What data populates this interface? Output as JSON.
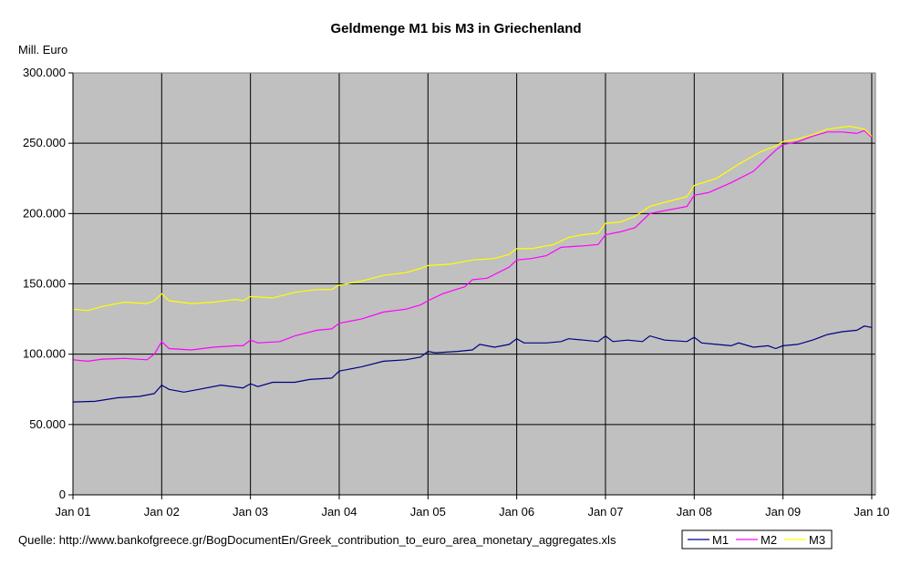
{
  "title": "Geldmenge M1 bis M3 in Griechenland",
  "unit_label": "Mill. Euro",
  "source_text": "Quelle: http://www.bankofgreece.gr/BogDocumentEn/Greek_contribution_to_euro_area_monetary_aggregates.xls",
  "colors": {
    "plot_bg": "#C0C0C0",
    "grid": "#000000",
    "M1": "#000080",
    "M2": "#FF00FF",
    "M3": "#FFFF00"
  },
  "chart_data": {
    "type": "line",
    "title": "Geldmenge M1 bis M3 in Griechenland",
    "ylabel": "Mill. Euro",
    "xlabel": "",
    "ylim": [
      0,
      300000
    ],
    "xlim": [
      0,
      108.5
    ],
    "y_ticks": [
      0,
      50000,
      100000,
      150000,
      200000,
      250000,
      300000
    ],
    "y_tick_labels": [
      "0",
      "50.000",
      "100.000",
      "150.000",
      "200.000",
      "250.000",
      "300.000"
    ],
    "x_tick_labels": [
      "Jan 01",
      "Jan 02",
      "Jan 03",
      "Jan 04",
      "Jan 05",
      "Jan 06",
      "Jan 07",
      "Jan 08",
      "Jan 09",
      "Jan 10"
    ],
    "x_start": "2001-01",
    "x_end": "2010-01",
    "grid": true,
    "legend_position": "bottom-right",
    "series": [
      {
        "name": "M1",
        "points": [
          [
            "2001-01",
            66000
          ],
          [
            "2001-04",
            66500
          ],
          [
            "2001-07",
            69000
          ],
          [
            "2001-10",
            70000
          ],
          [
            "2001-12",
            72000
          ],
          [
            "2002-01",
            78000
          ],
          [
            "2002-02",
            75000
          ],
          [
            "2002-04",
            73000
          ],
          [
            "2002-06",
            75000
          ],
          [
            "2002-09",
            78000
          ],
          [
            "2002-12",
            76000
          ],
          [
            "2003-01",
            79000
          ],
          [
            "2003-02",
            77000
          ],
          [
            "2003-04",
            80000
          ],
          [
            "2003-07",
            80000
          ],
          [
            "2003-09",
            82000
          ],
          [
            "2003-12",
            83000
          ],
          [
            "2004-01",
            88000
          ],
          [
            "2004-04",
            91000
          ],
          [
            "2004-07",
            95000
          ],
          [
            "2004-10",
            96000
          ],
          [
            "2004-12",
            98000
          ],
          [
            "2005-01",
            102000
          ],
          [
            "2005-02",
            101000
          ],
          [
            "2005-05",
            102000
          ],
          [
            "2005-07",
            103000
          ],
          [
            "2005-08",
            107000
          ],
          [
            "2005-10",
            105000
          ],
          [
            "2005-12",
            107000
          ],
          [
            "2006-01",
            111000
          ],
          [
            "2006-02",
            108000
          ],
          [
            "2006-05",
            108000
          ],
          [
            "2006-07",
            109000
          ],
          [
            "2006-08",
            111000
          ],
          [
            "2006-10",
            110000
          ],
          [
            "2006-12",
            109000
          ],
          [
            "2007-01",
            113000
          ],
          [
            "2007-02",
            109000
          ],
          [
            "2007-04",
            110000
          ],
          [
            "2007-06",
            109000
          ],
          [
            "2007-07",
            113000
          ],
          [
            "2007-09",
            110000
          ],
          [
            "2007-12",
            109000
          ],
          [
            "2008-01",
            112000
          ],
          [
            "2008-02",
            108000
          ],
          [
            "2008-04",
            107000
          ],
          [
            "2008-06",
            106000
          ],
          [
            "2008-07",
            108000
          ],
          [
            "2008-09",
            105000
          ],
          [
            "2008-11",
            106000
          ],
          [
            "2008-12",
            104000
          ],
          [
            "2009-01",
            106000
          ],
          [
            "2009-03",
            107000
          ],
          [
            "2009-05",
            110000
          ],
          [
            "2009-07",
            114000
          ],
          [
            "2009-09",
            116000
          ],
          [
            "2009-11",
            117000
          ],
          [
            "2009-12",
            120000
          ],
          [
            "2010-01",
            119000
          ]
        ]
      },
      {
        "name": "M2",
        "points": [
          [
            "2001-01",
            96000
          ],
          [
            "2001-03",
            95000
          ],
          [
            "2001-05",
            96500
          ],
          [
            "2001-08",
            97000
          ],
          [
            "2001-11",
            96000
          ],
          [
            "2001-12",
            100000
          ],
          [
            "2002-01",
            109000
          ],
          [
            "2002-02",
            104000
          ],
          [
            "2002-05",
            103000
          ],
          [
            "2002-08",
            105000
          ],
          [
            "2002-11",
            106000
          ],
          [
            "2002-12",
            106000
          ],
          [
            "2003-01",
            110000
          ],
          [
            "2003-02",
            108000
          ],
          [
            "2003-05",
            109000
          ],
          [
            "2003-07",
            113000
          ],
          [
            "2003-10",
            117000
          ],
          [
            "2003-12",
            118000
          ],
          [
            "2004-01",
            122000
          ],
          [
            "2004-04",
            125000
          ],
          [
            "2004-07",
            130000
          ],
          [
            "2004-10",
            132000
          ],
          [
            "2004-12",
            135000
          ],
          [
            "2005-01",
            138000
          ],
          [
            "2005-03",
            143000
          ],
          [
            "2005-06",
            148000
          ],
          [
            "2005-07",
            153000
          ],
          [
            "2005-09",
            154000
          ],
          [
            "2005-12",
            162000
          ],
          [
            "2006-01",
            167000
          ],
          [
            "2006-03",
            168000
          ],
          [
            "2006-05",
            170000
          ],
          [
            "2006-07",
            176000
          ],
          [
            "2006-10",
            177000
          ],
          [
            "2006-12",
            178000
          ],
          [
            "2007-01",
            185000
          ],
          [
            "2007-03",
            187000
          ],
          [
            "2007-05",
            190000
          ],
          [
            "2007-07",
            200000
          ],
          [
            "2007-09",
            202000
          ],
          [
            "2007-12",
            205000
          ],
          [
            "2008-01",
            213000
          ],
          [
            "2008-03",
            215000
          ],
          [
            "2008-06",
            222000
          ],
          [
            "2008-09",
            230000
          ],
          [
            "2008-11",
            240000
          ],
          [
            "2008-12",
            245000
          ],
          [
            "2009-01",
            249000
          ],
          [
            "2009-03",
            251000
          ],
          [
            "2009-05",
            255000
          ],
          [
            "2009-07",
            258000
          ],
          [
            "2009-09",
            258000
          ],
          [
            "2009-11",
            257000
          ],
          [
            "2009-12",
            259000
          ],
          [
            "2010-01",
            254000
          ]
        ]
      },
      {
        "name": "M3",
        "points": [
          [
            "2001-01",
            132000
          ],
          [
            "2001-03",
            131000
          ],
          [
            "2001-05",
            134000
          ],
          [
            "2001-08",
            137000
          ],
          [
            "2001-11",
            136000
          ],
          [
            "2001-12",
            138000
          ],
          [
            "2002-01",
            143000
          ],
          [
            "2002-02",
            138000
          ],
          [
            "2002-05",
            136000
          ],
          [
            "2002-08",
            137000
          ],
          [
            "2002-11",
            139000
          ],
          [
            "2002-12",
            138000
          ],
          [
            "2003-01",
            141000
          ],
          [
            "2003-04",
            140000
          ],
          [
            "2003-07",
            144000
          ],
          [
            "2003-10",
            146000
          ],
          [
            "2003-12",
            146000
          ],
          [
            "2004-01",
            149000
          ],
          [
            "2004-04",
            152000
          ],
          [
            "2004-07",
            156000
          ],
          [
            "2004-10",
            158000
          ],
          [
            "2004-12",
            161000
          ],
          [
            "2005-01",
            163000
          ],
          [
            "2005-04",
            164000
          ],
          [
            "2005-07",
            167000
          ],
          [
            "2005-10",
            168000
          ],
          [
            "2005-12",
            171000
          ],
          [
            "2006-01",
            175000
          ],
          [
            "2006-03",
            175000
          ],
          [
            "2006-06",
            178000
          ],
          [
            "2006-08",
            183000
          ],
          [
            "2006-10",
            185000
          ],
          [
            "2006-12",
            186000
          ],
          [
            "2007-01",
            193000
          ],
          [
            "2007-03",
            194000
          ],
          [
            "2007-05",
            198000
          ],
          [
            "2007-07",
            205000
          ],
          [
            "2007-09",
            208000
          ],
          [
            "2007-12",
            212000
          ],
          [
            "2008-01",
            220000
          ],
          [
            "2008-04",
            225000
          ],
          [
            "2008-07",
            235000
          ],
          [
            "2008-10",
            244000
          ],
          [
            "2008-12",
            248000
          ],
          [
            "2009-01",
            251000
          ],
          [
            "2009-03",
            253000
          ],
          [
            "2009-05",
            256000
          ],
          [
            "2009-07",
            260000
          ],
          [
            "2009-10",
            262000
          ],
          [
            "2009-12",
            260000
          ],
          [
            "2010-01",
            255000
          ]
        ]
      }
    ]
  }
}
